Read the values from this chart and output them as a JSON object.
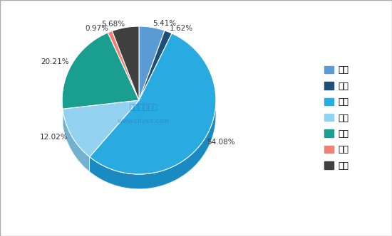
{
  "labels": [
    "华北",
    "东北",
    "华东",
    "华中",
    "华南",
    "西南",
    "西北"
  ],
  "values": [
    5.41,
    1.62,
    54.08,
    12.02,
    20.21,
    0.97,
    5.68
  ],
  "colors": [
    "#5b9bd5",
    "#1f4e79",
    "#29abe2",
    "#92d2f0",
    "#1a9e8f",
    "#f08070",
    "#404040"
  ],
  "shadow_colors": [
    "#3a7ab5",
    "#0f2e59",
    "#1a8bc2",
    "#72b2d0",
    "#0a7e6f",
    "#d06050",
    "#202020"
  ],
  "background_color": "#ffffff",
  "border_color": "#b0b0b0",
  "watermark_line1": "中国产业信息",
  "watermark_line2": "www.chyxx.com",
  "legend_labels": [
    "华北",
    "东北",
    "华东",
    "华中",
    "华南",
    "西南",
    "西北"
  ],
  "startangle": 90,
  "pct_distance": 1.18
}
